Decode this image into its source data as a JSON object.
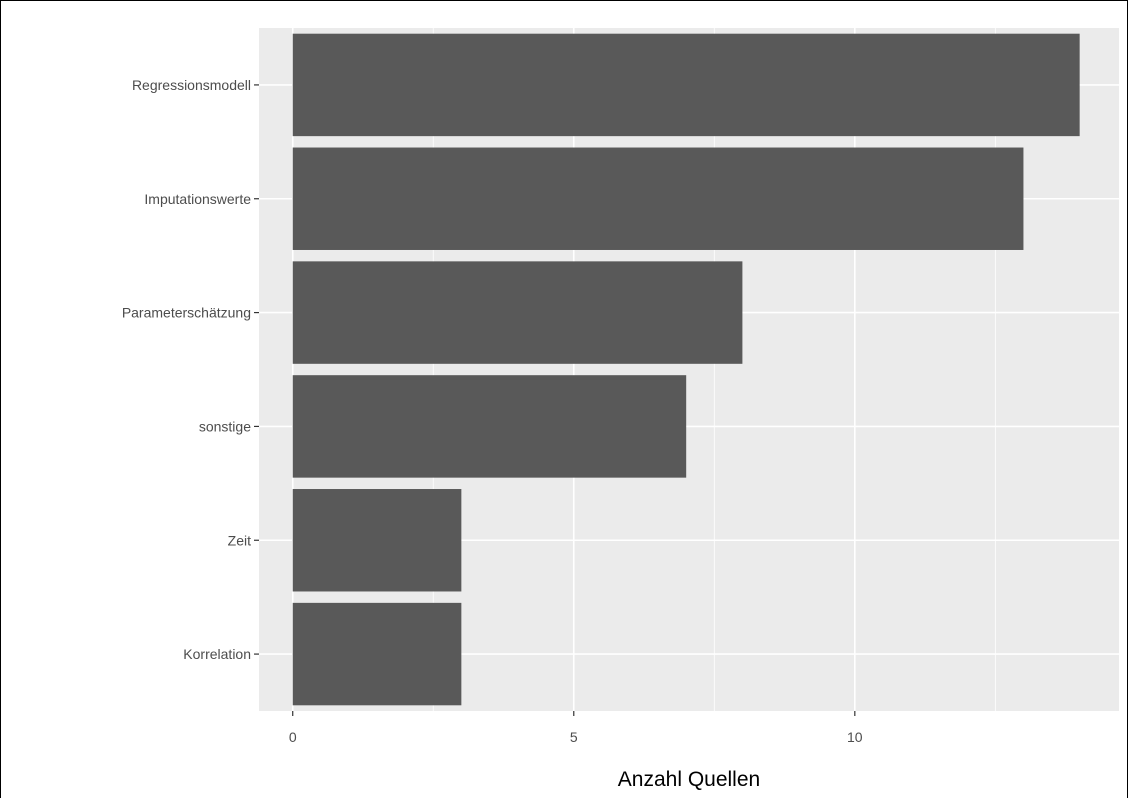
{
  "chart_data": {
    "type": "bar",
    "orientation": "horizontal",
    "title": "",
    "xlabel": "Anzahl Quellen",
    "ylabel": "",
    "categories": [
      "Regressionsmodell",
      "Imputationswerte",
      "Parameterschätzung",
      "sonstige",
      "Zeit",
      "Korrelation"
    ],
    "values": [
      14,
      13,
      8,
      7,
      3,
      3
    ],
    "xlim": [
      -0.6,
      14.7
    ],
    "xticks": [
      0,
      5,
      10
    ],
    "xtick_labels": [
      "0",
      "5",
      "10"
    ],
    "grid": true,
    "legend": "none",
    "colors": {
      "bar": "#595959",
      "panel_background": "#ebebeb",
      "grid_major": "#ffffff",
      "tick_text": "#4d4d4d",
      "axis_title": "#000000"
    }
  }
}
